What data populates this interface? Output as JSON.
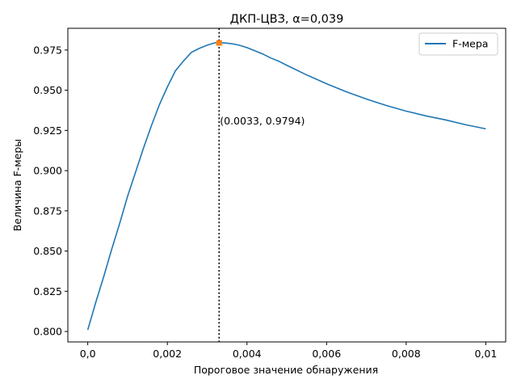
{
  "chart_data": {
    "type": "line",
    "title": "ДКП-ЦВЗ, α=0,039",
    "xlabel": "Пороговое значение обнаружения",
    "ylabel": "Величина F-меры",
    "xlim": [
      -0.0005,
      0.0105
    ],
    "ylim": [
      0.7935,
      0.9885
    ],
    "x_ticks": [
      {
        "value": 0.0,
        "label": "0,0"
      },
      {
        "value": 0.002,
        "label": "0,002"
      },
      {
        "value": 0.004,
        "label": "0,004"
      },
      {
        "value": 0.006,
        "label": "0,006"
      },
      {
        "value": 0.008,
        "label": "0,008"
      },
      {
        "value": 0.01,
        "label": "0,01"
      }
    ],
    "y_ticks": [
      {
        "value": 0.8,
        "label": "0.800"
      },
      {
        "value": 0.825,
        "label": "0.825"
      },
      {
        "value": 0.85,
        "label": "0.850"
      },
      {
        "value": 0.875,
        "label": "0.875"
      },
      {
        "value": 0.9,
        "label": "0.900"
      },
      {
        "value": 0.925,
        "label": "0.925"
      },
      {
        "value": 0.95,
        "label": "0.950"
      },
      {
        "value": 0.975,
        "label": "0.975"
      }
    ],
    "grid": false,
    "legend_position": "top-right",
    "series": [
      {
        "name": "F-мера",
        "color": "#1f77b4",
        "x": [
          0.0,
          0.0002,
          0.0004,
          0.0006,
          0.0008,
          0.001,
          0.0012,
          0.0014,
          0.0016,
          0.0018,
          0.002,
          0.0022,
          0.0024,
          0.0026,
          0.0028,
          0.003,
          0.0032,
          0.0034,
          0.0036,
          0.0038,
          0.004,
          0.0042,
          0.0044,
          0.0046,
          0.0048,
          0.005,
          0.0055,
          0.006,
          0.0065,
          0.007,
          0.0075,
          0.008,
          0.0085,
          0.009,
          0.0095,
          0.01
        ],
        "y": [
          0.801,
          0.818,
          0.834,
          0.851,
          0.867,
          0.884,
          0.899,
          0.914,
          0.928,
          0.941,
          0.952,
          0.962,
          0.968,
          0.9735,
          0.976,
          0.978,
          0.9795,
          0.9795,
          0.979,
          0.978,
          0.9765,
          0.9745,
          0.9725,
          0.97,
          0.968,
          0.9655,
          0.9595,
          0.954,
          0.949,
          0.9445,
          0.9405,
          0.937,
          0.934,
          0.9315,
          0.9285,
          0.926
        ]
      }
    ],
    "vline": {
      "x": 0.0033,
      "style": "dotted",
      "color": "#000000"
    },
    "marker": {
      "x": 0.0033,
      "y": 0.9794,
      "color": "#ff7f0e"
    },
    "annotation": {
      "x": 0.0033,
      "y": 0.9306,
      "text": "(0.0033, 0.9794)"
    }
  }
}
